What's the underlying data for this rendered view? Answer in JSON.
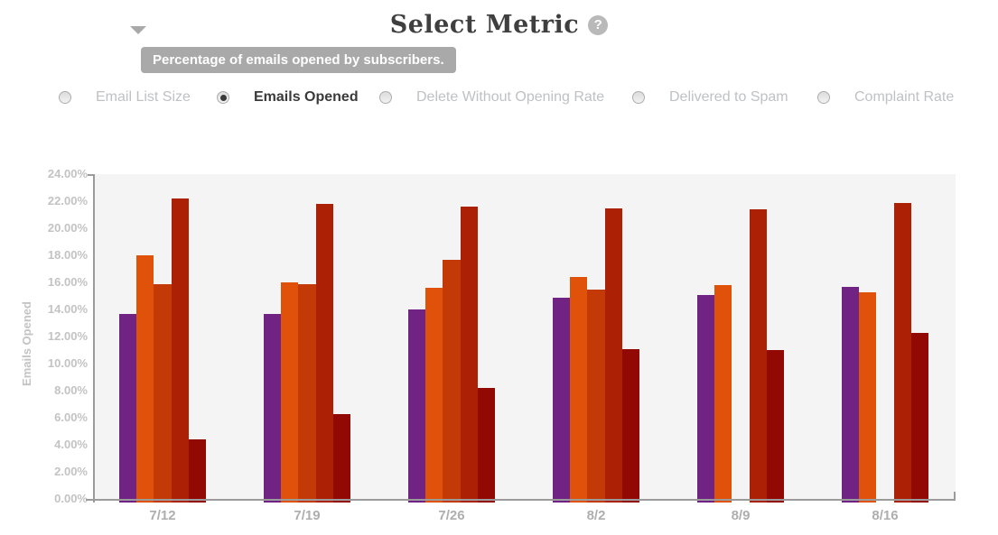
{
  "header": {
    "title": "Select Metric",
    "help_glyph": "?",
    "tooltip": "Percentage of emails opened by subscribers."
  },
  "metric_options": {
    "items": [
      {
        "label": "Email List Size",
        "selected": false
      },
      {
        "label": "Emails Opened",
        "selected": true
      },
      {
        "label": "Delete Without Opening Rate",
        "selected": false
      },
      {
        "label": "Delivered to Spam",
        "selected": false
      },
      {
        "label": "Complaint Rate",
        "selected": false
      }
    ]
  },
  "chart_data": {
    "type": "bar",
    "title": "",
    "xlabel": "",
    "ylabel": "Emails Opened",
    "categories": [
      "7/12",
      "7/19",
      "7/26",
      "8/2",
      "8/9",
      "8/16"
    ],
    "series": [
      {
        "name": "series-1",
        "color": "#702382",
        "values": [
          13.7,
          13.7,
          14.0,
          14.9,
          15.1,
          15.7
        ]
      },
      {
        "name": "series-2",
        "color": "#e0520a",
        "values": [
          18.0,
          16.0,
          15.6,
          16.4,
          15.8,
          15.3
        ]
      },
      {
        "name": "series-3",
        "color": "#c33a06",
        "values": [
          15.9,
          15.9,
          17.7,
          15.5,
          null,
          null
        ]
      },
      {
        "name": "series-4",
        "color": "#ac2005",
        "values": [
          22.2,
          21.8,
          21.6,
          21.5,
          21.4,
          21.9
        ]
      },
      {
        "name": "series-5",
        "color": "#920802",
        "values": [
          4.4,
          6.3,
          8.2,
          11.1,
          11.0,
          12.3
        ]
      }
    ],
    "ylim": [
      0,
      24
    ],
    "ytick_step": 2,
    "ytick_labels": [
      "0.00%",
      "2.00%",
      "4.00%",
      "6.00%",
      "8.00%",
      "10.00%",
      "12.00%",
      "14.00%",
      "16.00%",
      "18.00%",
      "20.00%",
      "22.00%",
      "24.00%"
    ],
    "grid": false,
    "legend": "none",
    "plot_bg": "#f4f4f5",
    "axis_color": "#9b9b9b"
  }
}
